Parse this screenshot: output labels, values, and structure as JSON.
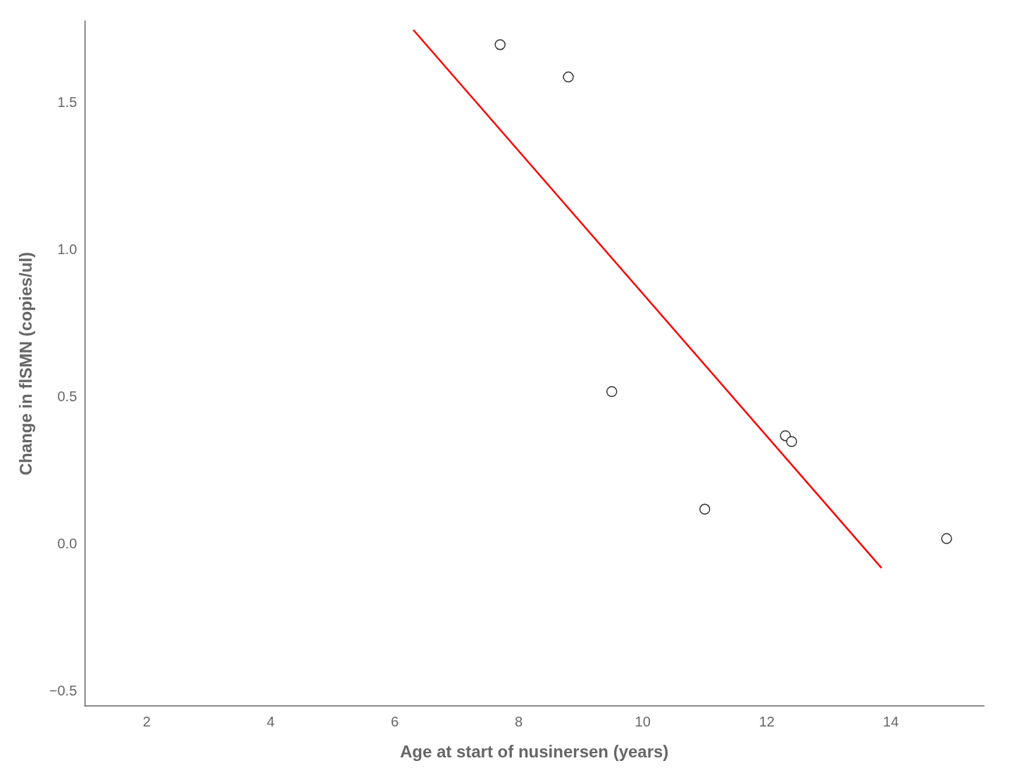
{
  "chart_data": {
    "type": "scatter",
    "xlabel": "Age at start of nusinersen (years)",
    "ylabel": "Change in flSMN (copies/ul)",
    "series": [
      {
        "type": "scatter",
        "color": "#333333",
        "marker": "circle",
        "x": [
          7.7,
          8.8,
          9.5,
          11.0,
          12.3,
          12.4,
          14.9
        ],
        "values": [
          1.7,
          1.59,
          0.52,
          0.12,
          0.37,
          0.35,
          0.02
        ]
      },
      {
        "type": "line",
        "color": "#ff0000",
        "line_style": "solid",
        "x": [
          6.3,
          13.85
        ],
        "values": [
          1.75,
          -0.08
        ]
      }
    ],
    "xlim": [
      1.0,
      15.5
    ],
    "ylim": [
      -0.55,
      1.78
    ],
    "xticks": [
      2,
      4,
      6,
      8,
      10,
      12,
      14
    ],
    "yticks": [
      {
        "value": -0.5,
        "label": "−0.5"
      },
      {
        "value": 0.0,
        "label": "0.0"
      },
      {
        "value": 0.5,
        "label": "0.5"
      },
      {
        "value": 1.0,
        "label": "1.0"
      },
      {
        "value": 1.5,
        "label": "1.5"
      }
    ],
    "grid": false
  }
}
